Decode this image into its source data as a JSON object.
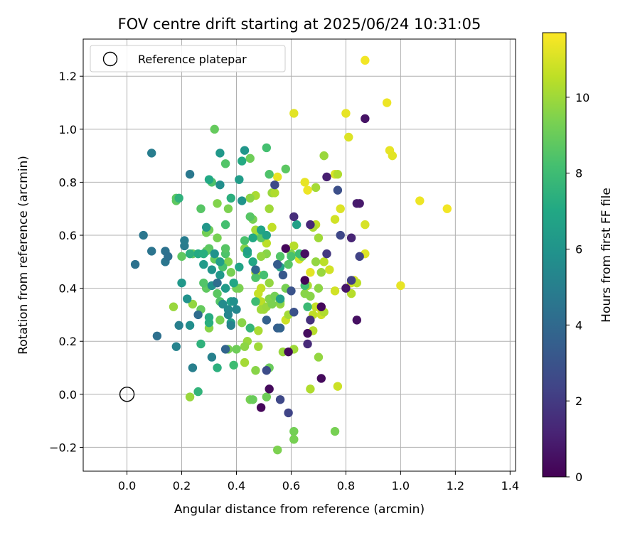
{
  "chart_data": {
    "type": "scatter",
    "title": "FOV centre drift starting at 2025/06/24 10:31:05",
    "xlabel": "Angular distance from reference (arcmin)",
    "ylabel": "Rotation from reference (arcmin)",
    "xlim": [
      -0.16,
      1.42
    ],
    "ylim": [
      -0.29,
      1.34
    ],
    "xticks": [
      0.0,
      0.2,
      0.4,
      0.6,
      0.8,
      1.0,
      1.2,
      1.4
    ],
    "xtick_labels": [
      "0.0",
      "0.2",
      "0.4",
      "0.6",
      "0.8",
      "1.0",
      "1.2",
      "1.4"
    ],
    "yticks": [
      -0.2,
      0.0,
      0.2,
      0.4,
      0.6,
      0.8,
      1.0,
      1.2
    ],
    "ytick_labels": [
      "−0.2",
      "0.0",
      "0.2",
      "0.4",
      "0.6",
      "0.8",
      "1.0",
      "1.2"
    ],
    "grid": true,
    "legend": {
      "placement": "top-left",
      "entries": [
        "Reference platepar"
      ]
    },
    "reference_point": {
      "x": 0.0,
      "y": 0.0
    },
    "colorbar": {
      "label": "Hours from first FF file",
      "colormap": "viridis",
      "range": [
        0,
        11.7
      ],
      "ticks": [
        0,
        2,
        4,
        6,
        8,
        10
      ],
      "tick_labels": [
        "0",
        "2",
        "4",
        "6",
        "8",
        "10"
      ]
    },
    "points": [
      {
        "x": 0.87,
        "y": 1.26,
        "h": 11.5
      },
      {
        "x": 0.95,
        "y": 1.1,
        "h": 11.4
      },
      {
        "x": 0.8,
        "y": 1.06,
        "h": 11.3
      },
      {
        "x": 0.61,
        "y": 1.06,
        "h": 11.2
      },
      {
        "x": 0.81,
        "y": 0.97,
        "h": 11.1
      },
      {
        "x": 0.96,
        "y": 0.92,
        "h": 11.3
      },
      {
        "x": 0.97,
        "y": 0.9,
        "h": 11.2
      },
      {
        "x": 1.07,
        "y": 0.73,
        "h": 11.4
      },
      {
        "x": 1.17,
        "y": 0.7,
        "h": 11.5
      },
      {
        "x": 1.0,
        "y": 0.41,
        "h": 11.3
      },
      {
        "x": 0.87,
        "y": 0.64,
        "h": 11.0
      },
      {
        "x": 0.87,
        "y": 0.53,
        "h": 11.1
      },
      {
        "x": 0.83,
        "y": 0.43,
        "h": 11.0
      },
      {
        "x": 0.82,
        "y": 0.42,
        "h": 10.8
      },
      {
        "x": 0.84,
        "y": 0.42,
        "h": 10.5
      },
      {
        "x": 0.82,
        "y": 0.38,
        "h": 10.4
      },
      {
        "x": 0.76,
        "y": 0.83,
        "h": 11.0
      },
      {
        "x": 0.77,
        "y": 0.83,
        "h": 10.3
      },
      {
        "x": 0.78,
        "y": 0.7,
        "h": 11.1
      },
      {
        "x": 0.76,
        "y": 0.66,
        "h": 10.9
      },
      {
        "x": 0.72,
        "y": 0.5,
        "h": 10.5
      },
      {
        "x": 0.74,
        "y": 0.47,
        "h": 10.9
      },
      {
        "x": 0.76,
        "y": 0.39,
        "h": 10.9
      },
      {
        "x": 0.69,
        "y": 0.33,
        "h": 10.7
      },
      {
        "x": 0.71,
        "y": 0.32,
        "h": 11.0
      },
      {
        "x": 0.68,
        "y": 0.3,
        "h": 10.6
      },
      {
        "x": 0.71,
        "y": 0.3,
        "h": 10.8
      },
      {
        "x": 0.68,
        "y": 0.24,
        "h": 10.4
      },
      {
        "x": 0.67,
        "y": 0.02,
        "h": 10.3
      },
      {
        "x": 0.77,
        "y": 0.03,
        "h": 10.8
      },
      {
        "x": 0.7,
        "y": 0.14,
        "h": 9.8
      },
      {
        "x": 0.67,
        "y": 0.46,
        "h": 11.2
      },
      {
        "x": 0.72,
        "y": 0.9,
        "h": 9.9
      },
      {
        "x": 0.69,
        "y": 0.78,
        "h": 10.1
      },
      {
        "x": 0.66,
        "y": 0.77,
        "h": 11.4
      },
      {
        "x": 0.65,
        "y": 0.8,
        "h": 11.3
      },
      {
        "x": 0.69,
        "y": 0.64,
        "h": 10.6
      },
      {
        "x": 0.68,
        "y": 0.63,
        "h": 10.2
      },
      {
        "x": 0.7,
        "y": 0.59,
        "h": 10.0
      },
      {
        "x": 0.69,
        "y": 0.5,
        "h": 9.8
      },
      {
        "x": 0.71,
        "y": 0.46,
        "h": 9.9
      },
      {
        "x": 0.7,
        "y": 0.4,
        "h": 9.7
      },
      {
        "x": 0.66,
        "y": 0.41,
        "h": 10.2
      },
      {
        "x": 0.67,
        "y": 0.37,
        "h": 9.6
      },
      {
        "x": 0.65,
        "y": 0.38,
        "h": 9.6
      },
      {
        "x": 0.72,
        "y": 0.31,
        "h": 10.3
      },
      {
        "x": 0.61,
        "y": 0.56,
        "h": 10.4
      },
      {
        "x": 0.63,
        "y": 0.51,
        "h": 10.9
      },
      {
        "x": 0.6,
        "y": 0.53,
        "h": 9.5
      },
      {
        "x": 0.64,
        "y": 0.52,
        "h": 9.4
      },
      {
        "x": 0.58,
        "y": 0.4,
        "h": 9.3
      },
      {
        "x": 0.58,
        "y": 0.28,
        "h": 10.8
      },
      {
        "x": 0.59,
        "y": 0.3,
        "h": 10.1
      },
      {
        "x": 0.57,
        "y": 0.16,
        "h": 9.9
      },
      {
        "x": 0.61,
        "y": 0.17,
        "h": 10.0
      },
      {
        "x": 0.56,
        "y": 0.34,
        "h": 9.8
      },
      {
        "x": 0.56,
        "y": 0.35,
        "h": 9.5
      },
      {
        "x": 0.53,
        "y": 0.76,
        "h": 9.9
      },
      {
        "x": 0.54,
        "y": 0.76,
        "h": 10.3
      },
      {
        "x": 0.55,
        "y": 0.82,
        "h": 11.3
      },
      {
        "x": 0.52,
        "y": 0.7,
        "h": 10.0
      },
      {
        "x": 0.53,
        "y": 0.63,
        "h": 10.6
      },
      {
        "x": 0.51,
        "y": 0.57,
        "h": 10.5
      },
      {
        "x": 0.51,
        "y": 0.53,
        "h": 9.6
      },
      {
        "x": 0.49,
        "y": 0.52,
        "h": 9.8
      },
      {
        "x": 0.48,
        "y": 0.6,
        "h": 9.7
      },
      {
        "x": 0.47,
        "y": 0.62,
        "h": 10.1
      },
      {
        "x": 0.46,
        "y": 0.66,
        "h": 9.3
      },
      {
        "x": 0.47,
        "y": 0.75,
        "h": 10.2
      },
      {
        "x": 0.45,
        "y": 0.74,
        "h": 9.7
      },
      {
        "x": 0.45,
        "y": 0.89,
        "h": 9.1
      },
      {
        "x": 0.43,
        "y": 0.55,
        "h": 9.6
      },
      {
        "x": 0.48,
        "y": 0.45,
        "h": 10.3
      },
      {
        "x": 0.47,
        "y": 0.46,
        "h": 10.4
      },
      {
        "x": 0.49,
        "y": 0.4,
        "h": 10.6
      },
      {
        "x": 0.48,
        "y": 0.38,
        "h": 10.7
      },
      {
        "x": 0.49,
        "y": 0.35,
        "h": 10.5
      },
      {
        "x": 0.5,
        "y": 0.32,
        "h": 10.1
      },
      {
        "x": 0.49,
        "y": 0.32,
        "h": 10.0
      },
      {
        "x": 0.51,
        "y": 0.33,
        "h": 9.9
      },
      {
        "x": 0.52,
        "y": 0.42,
        "h": 9.8
      },
      {
        "x": 0.52,
        "y": 0.36,
        "h": 9.5
      },
      {
        "x": 0.53,
        "y": 0.34,
        "h": 9.4
      },
      {
        "x": 0.54,
        "y": 0.37,
        "h": 9.2
      },
      {
        "x": 0.48,
        "y": 0.24,
        "h": 10.2
      },
      {
        "x": 0.48,
        "y": 0.18,
        "h": 10.0
      },
      {
        "x": 0.47,
        "y": 0.09,
        "h": 9.6
      },
      {
        "x": 0.52,
        "y": 0.1,
        "h": 9.0
      },
      {
        "x": 0.44,
        "y": 0.2,
        "h": 9.9
      },
      {
        "x": 0.43,
        "y": 0.18,
        "h": 9.7
      },
      {
        "x": 0.43,
        "y": 0.12,
        "h": 10.1
      },
      {
        "x": 0.42,
        "y": 0.27,
        "h": 9.6
      },
      {
        "x": 0.45,
        "y": -0.02,
        "h": 9.3
      },
      {
        "x": 0.46,
        "y": -0.02,
        "h": 9.0
      },
      {
        "x": 0.51,
        "y": -0.01,
        "h": 9.1
      },
      {
        "x": 0.61,
        "y": -0.14,
        "h": 9.2
      },
      {
        "x": 0.61,
        "y": -0.17,
        "h": 9.3
      },
      {
        "x": 0.55,
        "y": -0.21,
        "h": 9.4
      },
      {
        "x": 0.76,
        "y": -0.14,
        "h": 9.3
      },
      {
        "x": 0.23,
        "y": -0.01,
        "h": 9.9
      },
      {
        "x": 0.17,
        "y": 0.33,
        "h": 9.9
      },
      {
        "x": 0.24,
        "y": 0.34,
        "h": 9.8
      },
      {
        "x": 0.3,
        "y": 0.25,
        "h": 9.6
      },
      {
        "x": 0.34,
        "y": 0.28,
        "h": 9.4
      },
      {
        "x": 0.37,
        "y": 0.17,
        "h": 9.3
      },
      {
        "x": 0.4,
        "y": 0.17,
        "h": 9.1
      },
      {
        "x": 0.41,
        "y": 0.4,
        "h": 9.4
      },
      {
        "x": 0.4,
        "y": 0.4,
        "h": 9.2
      },
      {
        "x": 0.37,
        "y": 0.5,
        "h": 9.5
      },
      {
        "x": 0.38,
        "y": 0.46,
        "h": 9.3
      },
      {
        "x": 0.32,
        "y": 1.0,
        "h": 8.9
      },
      {
        "x": 0.33,
        "y": 0.72,
        "h": 9.5
      },
      {
        "x": 0.37,
        "y": 0.7,
        "h": 9.4
      },
      {
        "x": 0.33,
        "y": 0.59,
        "h": 9.3
      },
      {
        "x": 0.3,
        "y": 0.62,
        "h": 9.1
      },
      {
        "x": 0.29,
        "y": 0.61,
        "h": 9.2
      },
      {
        "x": 0.24,
        "y": 0.53,
        "h": 8.9
      },
      {
        "x": 0.2,
        "y": 0.52,
        "h": 8.8
      },
      {
        "x": 0.18,
        "y": 0.73,
        "h": 8.8
      },
      {
        "x": 0.18,
        "y": 0.74,
        "h": 8.7
      },
      {
        "x": 0.27,
        "y": 0.7,
        "h": 8.6
      },
      {
        "x": 0.3,
        "y": 0.55,
        "h": 8.7
      },
      {
        "x": 0.29,
        "y": 0.54,
        "h": 8.8
      },
      {
        "x": 0.32,
        "y": 0.51,
        "h": 8.9
      },
      {
        "x": 0.36,
        "y": 0.53,
        "h": 8.4
      },
      {
        "x": 0.36,
        "y": 0.55,
        "h": 8.6
      },
      {
        "x": 0.35,
        "y": 0.48,
        "h": 8.3
      },
      {
        "x": 0.33,
        "y": 0.38,
        "h": 8.7
      },
      {
        "x": 0.34,
        "y": 0.35,
        "h": 8.5
      },
      {
        "x": 0.29,
        "y": 0.4,
        "h": 8.8
      },
      {
        "x": 0.28,
        "y": 0.42,
        "h": 8.5
      },
      {
        "x": 0.27,
        "y": 0.32,
        "h": 8.9
      },
      {
        "x": 0.36,
        "y": 0.87,
        "h": 8.5
      },
      {
        "x": 0.36,
        "y": 0.64,
        "h": 8.2
      },
      {
        "x": 0.31,
        "y": 0.8,
        "h": 8.4
      },
      {
        "x": 0.43,
        "y": 0.58,
        "h": 8.3
      },
      {
        "x": 0.45,
        "y": 0.67,
        "h": 8.6
      },
      {
        "x": 0.49,
        "y": 0.59,
        "h": 8.7
      },
      {
        "x": 0.51,
        "y": 0.93,
        "h": 8.2
      },
      {
        "x": 0.52,
        "y": 0.83,
        "h": 8.4
      },
      {
        "x": 0.58,
        "y": 0.85,
        "h": 8.7
      },
      {
        "x": 0.56,
        "y": 0.52,
        "h": 8.5
      },
      {
        "x": 0.59,
        "y": 0.49,
        "h": 8.6
      },
      {
        "x": 0.6,
        "y": 0.52,
        "h": 8.3
      },
      {
        "x": 0.63,
        "y": 0.53,
        "h": 8.0
      },
      {
        "x": 0.65,
        "y": 0.41,
        "h": 8.1
      },
      {
        "x": 0.66,
        "y": 0.33,
        "h": 7.9
      },
      {
        "x": 0.47,
        "y": 0.35,
        "h": 8.0
      },
      {
        "x": 0.5,
        "y": 0.45,
        "h": 8.2
      },
      {
        "x": 0.47,
        "y": 0.44,
        "h": 8.4
      },
      {
        "x": 0.45,
        "y": 0.25,
        "h": 7.7
      },
      {
        "x": 0.39,
        "y": 0.11,
        "h": 8.0
      },
      {
        "x": 0.26,
        "y": 0.01,
        "h": 7.6
      },
      {
        "x": 0.33,
        "y": 0.1,
        "h": 7.4
      },
      {
        "x": 0.27,
        "y": 0.19,
        "h": 7.5
      },
      {
        "x": 0.3,
        "y": 0.27,
        "h": 7.3
      },
      {
        "x": 0.3,
        "y": 0.29,
        "h": 7.2
      },
      {
        "x": 0.26,
        "y": 0.53,
        "h": 7.1
      },
      {
        "x": 0.28,
        "y": 0.53,
        "h": 7.3
      },
      {
        "x": 0.23,
        "y": 0.53,
        "h": 7.4
      },
      {
        "x": 0.19,
        "y": 0.74,
        "h": 7.5
      },
      {
        "x": 0.3,
        "y": 0.81,
        "h": 7.0
      },
      {
        "x": 0.38,
        "y": 0.74,
        "h": 7.4
      },
      {
        "x": 0.42,
        "y": 0.88,
        "h": 7.1
      },
      {
        "x": 0.46,
        "y": 0.59,
        "h": 7.0
      },
      {
        "x": 0.44,
        "y": 0.53,
        "h": 7.2
      },
      {
        "x": 0.46,
        "y": 0.5,
        "h": 6.9
      },
      {
        "x": 0.49,
        "y": 0.62,
        "h": 6.8
      },
      {
        "x": 0.51,
        "y": 0.6,
        "h": 6.7
      },
      {
        "x": 0.62,
        "y": 0.64,
        "h": 6.6
      },
      {
        "x": 0.56,
        "y": 0.48,
        "h": 6.7
      },
      {
        "x": 0.56,
        "y": 0.36,
        "h": 6.5
      },
      {
        "x": 0.44,
        "y": 0.54,
        "h": 6.6
      },
      {
        "x": 0.41,
        "y": 0.48,
        "h": 6.8
      },
      {
        "x": 0.39,
        "y": 0.42,
        "h": 6.9
      },
      {
        "x": 0.38,
        "y": 0.35,
        "h": 6.6
      },
      {
        "x": 0.38,
        "y": 0.27,
        "h": 6.4
      },
      {
        "x": 0.34,
        "y": 0.5,
        "h": 6.5
      },
      {
        "x": 0.34,
        "y": 0.45,
        "h": 6.2
      },
      {
        "x": 0.36,
        "y": 0.4,
        "h": 6.3
      },
      {
        "x": 0.28,
        "y": 0.49,
        "h": 6.3
      },
      {
        "x": 0.29,
        "y": 0.63,
        "h": 6.1
      },
      {
        "x": 0.31,
        "y": 0.47,
        "h": 6.0
      },
      {
        "x": 0.32,
        "y": 0.53,
        "h": 5.9
      },
      {
        "x": 0.31,
        "y": 0.41,
        "h": 5.8
      },
      {
        "x": 0.34,
        "y": 0.91,
        "h": 6.2
      },
      {
        "x": 0.42,
        "y": 0.73,
        "h": 6.0
      },
      {
        "x": 0.41,
        "y": 0.81,
        "h": 6.4
      },
      {
        "x": 0.43,
        "y": 0.92,
        "h": 6.1
      },
      {
        "x": 0.34,
        "y": 0.79,
        "h": 5.7
      },
      {
        "x": 0.2,
        "y": 0.42,
        "h": 6.2
      },
      {
        "x": 0.22,
        "y": 0.36,
        "h": 5.9
      },
      {
        "x": 0.23,
        "y": 0.26,
        "h": 5.7
      },
      {
        "x": 0.37,
        "y": 0.32,
        "h": 5.5
      },
      {
        "x": 0.35,
        "y": 0.34,
        "h": 5.6
      },
      {
        "x": 0.39,
        "y": 0.35,
        "h": 5.8
      },
      {
        "x": 0.4,
        "y": 0.32,
        "h": 5.4
      },
      {
        "x": 0.37,
        "y": 0.3,
        "h": 5.3
      },
      {
        "x": 0.38,
        "y": 0.26,
        "h": 5.2
      },
      {
        "x": 0.31,
        "y": 0.14,
        "h": 5.1
      },
      {
        "x": 0.24,
        "y": 0.1,
        "h": 5.0
      },
      {
        "x": 0.18,
        "y": 0.18,
        "h": 5.2
      },
      {
        "x": 0.19,
        "y": 0.26,
        "h": 5.0
      },
      {
        "x": 0.21,
        "y": 0.56,
        "h": 4.8
      },
      {
        "x": 0.21,
        "y": 0.58,
        "h": 4.9
      },
      {
        "x": 0.23,
        "y": 0.83,
        "h": 4.7
      },
      {
        "x": 0.09,
        "y": 0.91,
        "h": 4.9
      },
      {
        "x": 0.06,
        "y": 0.6,
        "h": 4.6
      },
      {
        "x": 0.09,
        "y": 0.54,
        "h": 4.5
      },
      {
        "x": 0.14,
        "y": 0.54,
        "h": 4.4
      },
      {
        "x": 0.14,
        "y": 0.5,
        "h": 4.6
      },
      {
        "x": 0.15,
        "y": 0.52,
        "h": 4.3
      },
      {
        "x": 0.03,
        "y": 0.49,
        "h": 4.4
      },
      {
        "x": 0.11,
        "y": 0.22,
        "h": 4.3
      },
      {
        "x": 0.26,
        "y": 0.3,
        "h": 4.1
      },
      {
        "x": 0.33,
        "y": 0.42,
        "h": 4.2
      },
      {
        "x": 0.36,
        "y": 0.17,
        "h": 3.8
      },
      {
        "x": 0.47,
        "y": 0.47,
        "h": 3.9
      },
      {
        "x": 0.51,
        "y": 0.28,
        "h": 3.6
      },
      {
        "x": 0.55,
        "y": 0.25,
        "h": 3.5
      },
      {
        "x": 0.56,
        "y": 0.25,
        "h": 3.7
      },
      {
        "x": 0.55,
        "y": 0.49,
        "h": 3.4
      },
      {
        "x": 0.57,
        "y": 0.45,
        "h": 3.2
      },
      {
        "x": 0.6,
        "y": 0.39,
        "h": 3.0
      },
      {
        "x": 0.61,
        "y": 0.31,
        "h": 2.9
      },
      {
        "x": 0.51,
        "y": 0.09,
        "h": 2.7
      },
      {
        "x": 0.56,
        "y": -0.02,
        "h": 2.5
      },
      {
        "x": 0.59,
        "y": -0.07,
        "h": 2.4
      },
      {
        "x": 0.54,
        "y": 0.79,
        "h": 2.6
      },
      {
        "x": 0.77,
        "y": 0.77,
        "h": 2.8
      },
      {
        "x": 0.78,
        "y": 0.6,
        "h": 2.5
      },
      {
        "x": 0.85,
        "y": 0.52,
        "h": 2.3
      },
      {
        "x": 0.82,
        "y": 0.43,
        "h": 2.2
      },
      {
        "x": 0.73,
        "y": 0.53,
        "h": 1.9
      },
      {
        "x": 0.67,
        "y": 0.28,
        "h": 1.6
      },
      {
        "x": 0.66,
        "y": 0.19,
        "h": 1.4
      },
      {
        "x": 0.61,
        "y": 0.67,
        "h": 1.5
      },
      {
        "x": 0.67,
        "y": 0.64,
        "h": 1.3
      },
      {
        "x": 0.73,
        "y": 0.82,
        "h": 1.0
      },
      {
        "x": 0.82,
        "y": 0.59,
        "h": 1.2
      },
      {
        "x": 0.84,
        "y": 0.72,
        "h": 0.9
      },
      {
        "x": 0.85,
        "y": 0.72,
        "h": 0.8
      },
      {
        "x": 0.87,
        "y": 1.04,
        "h": 0.6
      },
      {
        "x": 0.8,
        "y": 0.4,
        "h": 0.7
      },
      {
        "x": 0.84,
        "y": 0.28,
        "h": 0.5
      },
      {
        "x": 0.66,
        "y": 0.23,
        "h": 0.4
      },
      {
        "x": 0.71,
        "y": 0.06,
        "h": 0.3
      },
      {
        "x": 0.52,
        "y": 0.02,
        "h": 0.3
      },
      {
        "x": 0.49,
        "y": -0.05,
        "h": 0.2
      },
      {
        "x": 0.58,
        "y": 0.55,
        "h": 0.2
      },
      {
        "x": 0.65,
        "y": 0.43,
        "h": 0.1
      },
      {
        "x": 0.59,
        "y": 0.16,
        "h": 0.3
      },
      {
        "x": 0.71,
        "y": 0.33,
        "h": 0.2
      },
      {
        "x": 0.65,
        "y": 0.53,
        "h": 0.5
      }
    ]
  }
}
